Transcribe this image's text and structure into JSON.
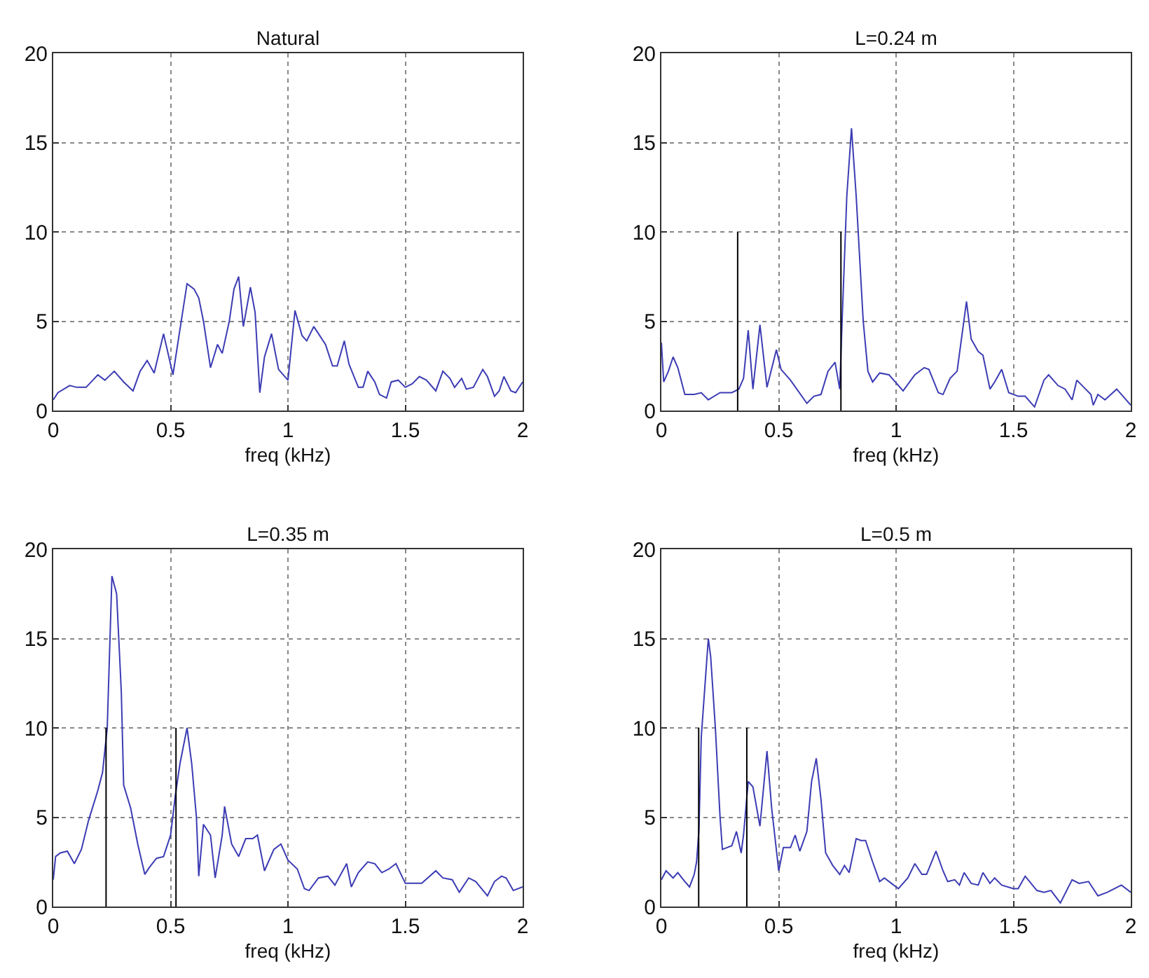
{
  "chart_data": [
    {
      "type": "line",
      "title": "Natural",
      "xlabel": "freq (kHz)",
      "xlim": [
        0,
        2
      ],
      "xticks": [
        0,
        0.5,
        1,
        1.5,
        2
      ],
      "ylim": [
        0,
        20
      ],
      "yticks": [
        0,
        5,
        10,
        15,
        20
      ],
      "grid": true,
      "line_style": "solid",
      "series": [
        {
          "color": "#3c3cb4",
          "x": [
            0,
            0.02,
            0.07,
            0.1,
            0.14,
            0.19,
            0.22,
            0.26,
            0.3,
            0.34,
            0.37,
            0.4,
            0.43,
            0.47,
            0.51,
            0.57,
            0.6,
            0.62,
            0.64,
            0.67,
            0.7,
            0.72,
            0.75,
            0.77,
            0.79,
            0.81,
            0.84,
            0.86,
            0.88,
            0.9,
            0.93,
            0.96,
            1.0,
            1.03,
            1.06,
            1.08,
            1.11,
            1.16,
            1.19,
            1.21,
            1.24,
            1.26,
            1.3,
            1.32,
            1.34,
            1.37,
            1.39,
            1.42,
            1.44,
            1.47,
            1.5,
            1.53,
            1.56,
            1.59,
            1.63,
            1.66,
            1.69,
            1.71,
            1.74,
            1.76,
            1.79,
            1.83,
            1.85,
            1.88,
            1.9,
            1.92,
            1.95,
            1.97,
            2.0
          ],
          "values": [
            0.6,
            1.0,
            1.4,
            1.3,
            1.3,
            2.0,
            1.7,
            2.2,
            1.6,
            1.1,
            2.2,
            2.8,
            2.1,
            4.3,
            2.0,
            7.1,
            6.8,
            6.3,
            5.0,
            2.4,
            3.7,
            3.2,
            5.0,
            6.8,
            7.5,
            4.7,
            6.9,
            5.5,
            1.0,
            3.0,
            4.3,
            2.3,
            1.7,
            5.6,
            4.2,
            3.9,
            4.7,
            3.7,
            2.5,
            2.5,
            3.9,
            2.6,
            1.3,
            1.3,
            2.2,
            1.6,
            0.9,
            0.7,
            1.6,
            1.7,
            1.3,
            1.5,
            1.9,
            1.7,
            1.1,
            2.2,
            1.8,
            1.3,
            1.8,
            1.2,
            1.3,
            2.3,
            1.9,
            0.8,
            1.1,
            1.9,
            1.1,
            1.0,
            1.6
          ]
        }
      ]
    },
    {
      "type": "line",
      "title": "L=0.24 m",
      "xlabel": "freq (kHz)",
      "xlim": [
        0,
        2
      ],
      "xticks": [
        0,
        0.5,
        1,
        1.5,
        2
      ],
      "ylim": [
        0,
        20
      ],
      "yticks": [
        0,
        5,
        10,
        15,
        20
      ],
      "grid": true,
      "line_style": "solid",
      "series": [
        {
          "color": "#3c3cb4",
          "x": [
            0,
            0.01,
            0.03,
            0.05,
            0.07,
            0.1,
            0.14,
            0.17,
            0.2,
            0.25,
            0.3,
            0.33,
            0.35,
            0.37,
            0.39,
            0.42,
            0.45,
            0.49,
            0.51,
            0.55,
            0.62,
            0.65,
            0.68,
            0.71,
            0.74,
            0.76,
            0.77,
            0.79,
            0.81,
            0.83,
            0.86,
            0.88,
            0.9,
            0.93,
            0.97,
            1.03,
            1.08,
            1.12,
            1.14,
            1.18,
            1.2,
            1.23,
            1.26,
            1.3,
            1.32,
            1.35,
            1.37,
            1.4,
            1.42,
            1.45,
            1.48,
            1.52,
            1.55,
            1.59,
            1.63,
            1.65,
            1.69,
            1.72,
            1.75,
            1.77,
            1.8,
            1.83,
            1.84,
            1.86,
            1.89,
            1.94,
            1.98,
            2.0
          ],
          "values": [
            3.8,
            1.6,
            2.2,
            3.0,
            2.4,
            0.9,
            0.9,
            1.0,
            0.6,
            1.0,
            1.0,
            1.2,
            1.8,
            4.5,
            1.2,
            4.8,
            1.3,
            3.4,
            2.3,
            1.7,
            0.4,
            0.8,
            0.9,
            2.2,
            2.7,
            1.2,
            5.0,
            12.0,
            15.8,
            12.0,
            5.0,
            2.2,
            1.6,
            2.1,
            2.0,
            1.1,
            2.0,
            2.4,
            2.3,
            1.0,
            0.9,
            1.8,
            2.2,
            6.1,
            4.0,
            3.3,
            3.1,
            1.2,
            1.6,
            2.3,
            1.0,
            0.8,
            0.8,
            0.2,
            1.7,
            2.0,
            1.4,
            1.2,
            0.6,
            1.7,
            1.3,
            0.9,
            0.3,
            0.9,
            0.6,
            1.2,
            0.6,
            0.3
          ]
        },
        {
          "color": "#000000",
          "x": [
            0.325,
            0.325,
            null,
            0.765,
            0.765
          ],
          "values": [
            0,
            10,
            null,
            0,
            10
          ]
        }
      ]
    },
    {
      "type": "line",
      "title": "L=0.35 m",
      "xlabel": "freq (kHz)",
      "xlim": [
        0,
        2
      ],
      "xticks": [
        0,
        0.5,
        1,
        1.5,
        2
      ],
      "ylim": [
        0,
        20
      ],
      "yticks": [
        0,
        5,
        10,
        15,
        20
      ],
      "grid": true,
      "line_style": "solid",
      "series": [
        {
          "color": "#3c3cb4",
          "x": [
            0,
            0.01,
            0.03,
            0.06,
            0.09,
            0.12,
            0.15,
            0.19,
            0.21,
            0.23,
            0.25,
            0.27,
            0.29,
            0.3,
            0.33,
            0.36,
            0.39,
            0.41,
            0.44,
            0.47,
            0.5,
            0.52,
            0.54,
            0.57,
            0.59,
            0.61,
            0.62,
            0.64,
            0.67,
            0.69,
            0.72,
            0.73,
            0.76,
            0.79,
            0.82,
            0.85,
            0.87,
            0.9,
            0.94,
            0.97,
            1.0,
            1.04,
            1.07,
            1.09,
            1.13,
            1.17,
            1.2,
            1.25,
            1.27,
            1.3,
            1.34,
            1.37,
            1.4,
            1.43,
            1.46,
            1.5,
            1.57,
            1.63,
            1.66,
            1.7,
            1.73,
            1.77,
            1.8,
            1.85,
            1.88,
            1.91,
            1.93,
            1.96,
            2.0
          ],
          "values": [
            1.5,
            2.8,
            3.0,
            3.1,
            2.4,
            3.2,
            4.8,
            6.5,
            7.5,
            10.0,
            18.5,
            17.5,
            12.0,
            6.8,
            5.5,
            3.5,
            1.8,
            2.2,
            2.7,
            2.8,
            4.0,
            6.2,
            8.0,
            10.0,
            8.0,
            5.0,
            1.7,
            4.6,
            4.0,
            1.6,
            4.0,
            5.6,
            3.5,
            2.8,
            3.8,
            3.8,
            4.0,
            2.0,
            3.2,
            3.5,
            2.6,
            2.1,
            1.0,
            0.9,
            1.6,
            1.7,
            1.2,
            2.4,
            1.1,
            1.9,
            2.5,
            2.4,
            1.9,
            2.1,
            2.4,
            1.3,
            1.3,
            2.0,
            1.6,
            1.5,
            0.8,
            1.6,
            1.4,
            0.6,
            1.4,
            1.7,
            1.6,
            0.9,
            1.1
          ]
        },
        {
          "color": "#000000",
          "x": [
            0.225,
            0.225,
            null,
            0.523,
            0.523
          ],
          "values": [
            0,
            10,
            null,
            0,
            10
          ]
        }
      ]
    },
    {
      "type": "line",
      "title": "L=0.5 m",
      "xlabel": "freq (kHz)",
      "xlim": [
        0,
        2
      ],
      "xticks": [
        0,
        0.5,
        1,
        1.5,
        2
      ],
      "ylim": [
        0,
        20
      ],
      "yticks": [
        0,
        5,
        10,
        15,
        20
      ],
      "grid": true,
      "line_style": "solid",
      "series": [
        {
          "color": "#3c3cb4",
          "x": [
            0,
            0.02,
            0.05,
            0.07,
            0.1,
            0.12,
            0.14,
            0.15,
            0.16,
            0.17,
            0.2,
            0.21,
            0.23,
            0.25,
            0.26,
            0.3,
            0.32,
            0.34,
            0.35,
            0.37,
            0.39,
            0.42,
            0.45,
            0.47,
            0.5,
            0.52,
            0.55,
            0.57,
            0.59,
            0.62,
            0.64,
            0.66,
            0.68,
            0.7,
            0.73,
            0.76,
            0.78,
            0.8,
            0.83,
            0.85,
            0.87,
            0.9,
            0.93,
            0.95,
            0.98,
            1.01,
            1.05,
            1.08,
            1.11,
            1.13,
            1.17,
            1.2,
            1.22,
            1.25,
            1.27,
            1.29,
            1.32,
            1.35,
            1.37,
            1.4,
            1.42,
            1.45,
            1.5,
            1.52,
            1.55,
            1.6,
            1.63,
            1.66,
            1.7,
            1.75,
            1.78,
            1.82,
            1.86,
            1.9,
            1.96,
            2.0
          ],
          "values": [
            1.5,
            2.0,
            1.6,
            1.9,
            1.4,
            1.1,
            1.8,
            2.5,
            4.3,
            9.5,
            15.0,
            14.0,
            10.0,
            5.0,
            3.2,
            3.4,
            4.2,
            3.0,
            4.0,
            7.0,
            6.7,
            4.5,
            8.7,
            5.5,
            2.0,
            3.3,
            3.3,
            4.0,
            3.1,
            4.2,
            7.0,
            8.3,
            6.0,
            3.0,
            2.3,
            1.8,
            2.3,
            1.9,
            3.8,
            3.7,
            3.7,
            2.5,
            1.4,
            1.6,
            1.3,
            1.0,
            1.6,
            2.4,
            1.8,
            1.8,
            3.1,
            2.0,
            1.4,
            1.5,
            1.2,
            1.9,
            1.3,
            1.2,
            1.9,
            1.3,
            1.6,
            1.2,
            1.0,
            1.0,
            1.7,
            0.9,
            0.8,
            0.9,
            0.2,
            1.5,
            1.3,
            1.4,
            0.6,
            0.8,
            1.2,
            0.8
          ]
        },
        {
          "color": "#000000",
          "x": [
            0.159,
            0.159,
            null,
            0.364,
            0.364
          ],
          "values": [
            0,
            10,
            null,
            0,
            10
          ]
        }
      ]
    }
  ]
}
